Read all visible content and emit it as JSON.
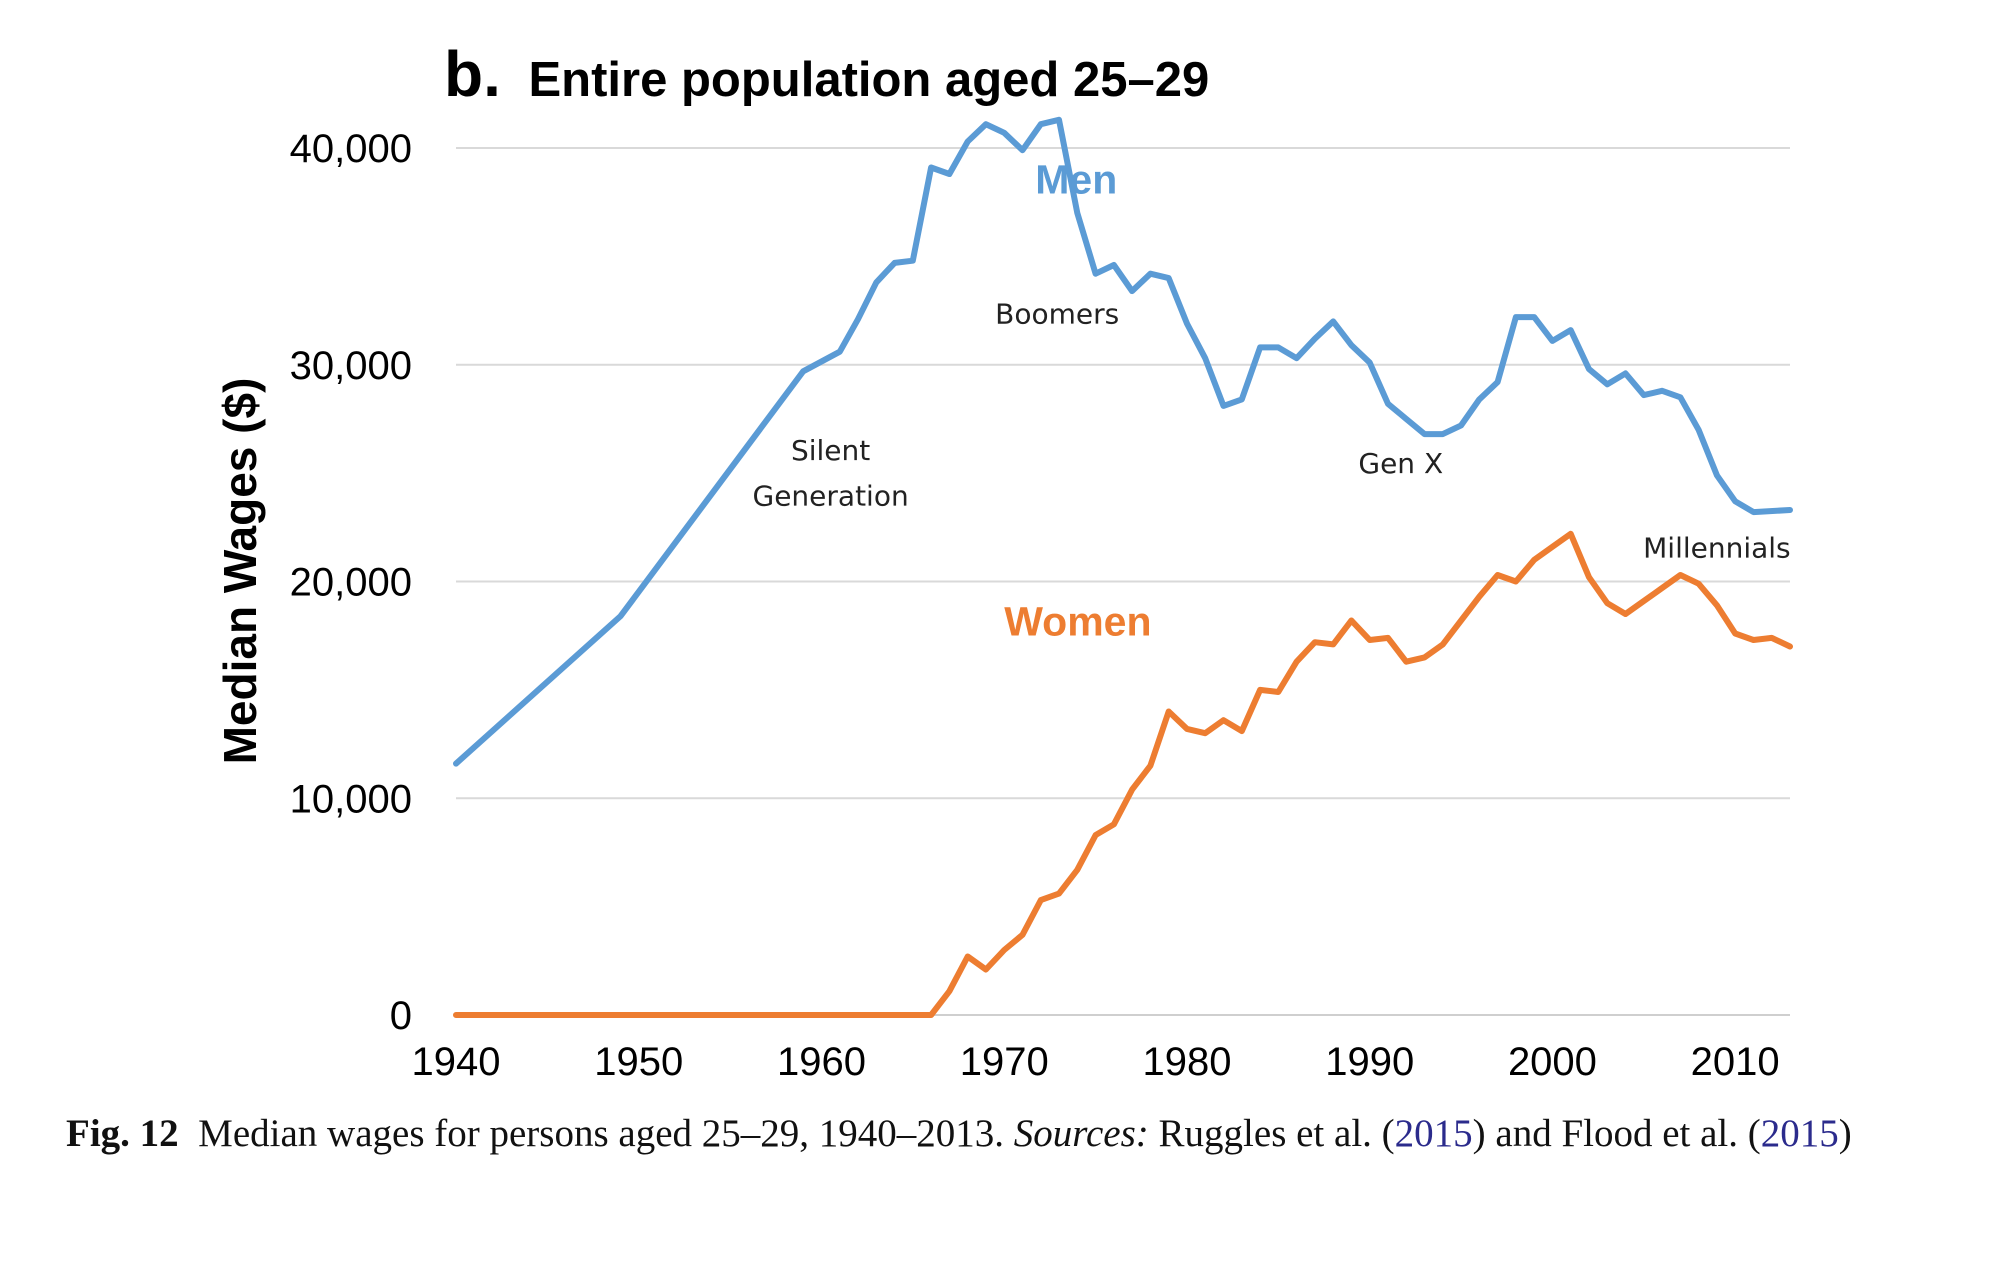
{
  "colors": {
    "men": "#5b9bd5",
    "women": "#ed7d31",
    "grid": "#d9d9d9",
    "text": "#000000",
    "link": "#2b2b8c"
  },
  "chart_data": {
    "type": "line",
    "panel_letter": "b.",
    "title": "Entire population aged 25–29",
    "xlabel": "",
    "ylabel": "Median Wages ($)",
    "xlim": [
      1940,
      2013
    ],
    "ylim": [
      0,
      40000
    ],
    "grid": true,
    "x_ticks": [
      1940,
      1950,
      1960,
      1970,
      1980,
      1990,
      2000,
      2010
    ],
    "x_tick_labels": [
      "1940",
      "1950",
      "1960",
      "1970",
      "1980",
      "1990",
      "2000",
      "2010"
    ],
    "y_ticks": [
      0,
      10000,
      20000,
      30000,
      40000
    ],
    "y_tick_labels": [
      "0",
      "10,000",
      "20,000",
      "30,000",
      "40,000"
    ],
    "series": [
      {
        "name": "Men",
        "color": "#5b9bd5",
        "x": [
          1940,
          1949,
          1959,
          1961,
          1962,
          1963,
          1964,
          1965,
          1966,
          1967,
          1968,
          1969,
          1970,
          1971,
          1972,
          1973,
          1974,
          1975,
          1976,
          1977,
          1978,
          1979,
          1980,
          1981,
          1982,
          1983,
          1984,
          1985,
          1986,
          1987,
          1988,
          1989,
          1990,
          1991,
          1992,
          1993,
          1994,
          1995,
          1996,
          1997,
          1998,
          1999,
          2000,
          2001,
          2002,
          2003,
          2004,
          2005,
          2006,
          2007,
          2008,
          2009,
          2010,
          2011,
          2013
        ],
        "values": [
          11600,
          18400,
          29700,
          30600,
          32100,
          33800,
          34700,
          34800,
          39100,
          38800,
          40300,
          41100,
          40700,
          39900,
          41100,
          41300,
          37000,
          34200,
          34600,
          33400,
          34200,
          34000,
          31900,
          30300,
          28100,
          28400,
          30800,
          30800,
          30300,
          31200,
          32000,
          30900,
          30100,
          28200,
          27500,
          26800,
          26800,
          27200,
          28400,
          29200,
          32200,
          32200,
          31100,
          31600,
          29800,
          29100,
          29600,
          28600,
          28800,
          28500,
          27000,
          24900,
          23700,
          23200,
          23300
        ]
      },
      {
        "name": "Women",
        "color": "#ed7d31",
        "x": [
          1940,
          1966,
          1967,
          1968,
          1969,
          1970,
          1971,
          1972,
          1973,
          1974,
          1975,
          1976,
          1977,
          1978,
          1979,
          1980,
          1981,
          1982,
          1983,
          1984,
          1985,
          1986,
          1987,
          1988,
          1989,
          1990,
          1991,
          1992,
          1993,
          1994,
          1995,
          1996,
          1997,
          1998,
          1999,
          2000,
          2001,
          2002,
          2003,
          2004,
          2005,
          2006,
          2007,
          2008,
          2009,
          2010,
          2011,
          2012,
          2013
        ],
        "values": [
          0,
          0,
          1100,
          2700,
          2100,
          3000,
          3700,
          5300,
          5600,
          6700,
          8300,
          8800,
          10400,
          11500,
          14000,
          13200,
          13000,
          13600,
          13100,
          15000,
          14900,
          16300,
          17200,
          17100,
          18200,
          17300,
          17400,
          16300,
          16500,
          17100,
          18200,
          19300,
          20300,
          20000,
          21000,
          21600,
          22200,
          20200,
          19000,
          18500,
          19100,
          19700,
          20300,
          19900,
          18900,
          17600,
          17300,
          17400,
          17000
        ]
      }
    ],
    "series_labels": [
      {
        "text": "Men",
        "series": "Men",
        "x": 1971.7,
        "y": 37900
      },
      {
        "text": "Women",
        "series": "Women",
        "x": 1970.0,
        "y": 17500
      }
    ],
    "annotations": [
      {
        "text": "Silent",
        "x": 1960.5,
        "y": 25600
      },
      {
        "text": "Generation",
        "x": 1960.5,
        "y": 23500
      },
      {
        "text": "Boomers",
        "x": 1972.9,
        "y": 31900
      },
      {
        "text": "Gen X",
        "x": 1991.7,
        "y": 25000
      },
      {
        "text": "Millennials",
        "x": 2009.0,
        "y": 21100
      }
    ]
  },
  "caption": {
    "fig_label": "Fig. 12",
    "text_main": "Median wages for persons aged 25–29, 1940–2013.",
    "sources_label": "Sources:",
    "text_pre_cite1": "Ruggles et al. (",
    "cite1": "2015",
    "text_between": ") and Flood et al. (",
    "cite2": "2015",
    "text_post": ")"
  }
}
